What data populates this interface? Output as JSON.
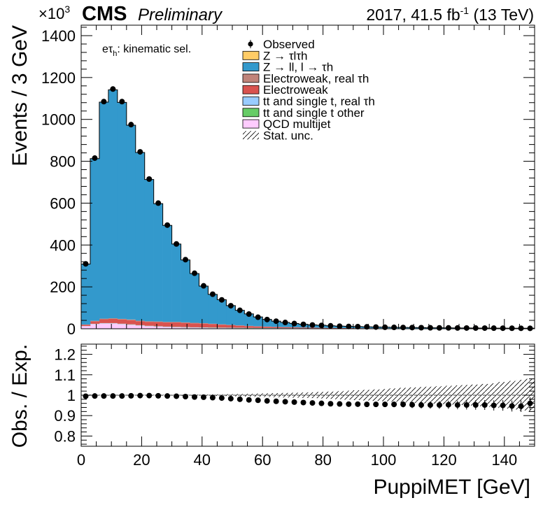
{
  "header": {
    "multiplier": "×10",
    "multiplier_exp": "3",
    "experiment": "CMS",
    "status": "Preliminary",
    "lumi_prefix": "2017, 41.5 fb",
    "lumi_exp": "-1",
    "lumi_suffix": " (13 TeV)"
  },
  "category": {
    "text_e": "eτ",
    "text_sub": "h",
    "text_rest": ": kinematic sel."
  },
  "chart_data": [
    {
      "type": "histogram",
      "stacked": true,
      "ylabel": "Events / 3 GeV",
      "ylim": [
        0,
        1450
      ],
      "yticks": [
        0,
        200,
        400,
        600,
        800,
        1000,
        1200,
        1400
      ],
      "y_unit_factor": 1000,
      "x_bin_edges_start": 0,
      "bin_width": 3,
      "n_bins": 50,
      "xlim": [
        0,
        150
      ],
      "legend": [
        {
          "name": "Observed",
          "style": "marker",
          "color": "#000000"
        },
        {
          "name": "Z → τlτh",
          "style": "fill",
          "color": "#ffcc66"
        },
        {
          "name": "Z → ll, l → τh",
          "style": "fill",
          "color": "#3399cc"
        },
        {
          "name": "Electroweak, real τh",
          "style": "fill",
          "color": "#c0847a"
        },
        {
          "name": "Electroweak",
          "style": "fill",
          "color": "#d9534f"
        },
        {
          "name": "tt and single t, real τh",
          "style": "fill",
          "color": "#99ccff"
        },
        {
          "name": "tt and single t other",
          "style": "fill",
          "color": "#66cc66"
        },
        {
          "name": "QCD multijet",
          "style": "fill",
          "color": "#ffccff"
        },
        {
          "name": "Stat. unc.",
          "style": "hatch",
          "color": "#000000"
        }
      ],
      "observed": [
        310,
        815,
        1085,
        1145,
        1085,
        975,
        845,
        715,
        600,
        495,
        405,
        330,
        265,
        205,
        165,
        138,
        110,
        88,
        70,
        55,
        44,
        36,
        30,
        25,
        21,
        18,
        16,
        14,
        12,
        11,
        10,
        9,
        8,
        7,
        6.5,
        6,
        5.5,
        5,
        4.5,
        4.2,
        4,
        3.7,
        3.4,
        3.2,
        3,
        2.8,
        2.6,
        2.4,
        2.2,
        2
      ],
      "series": [
        {
          "name": "QCD multijet",
          "color": "#ffccff",
          "values": [
            12,
            22,
            25,
            25,
            22,
            19,
            15,
            12,
            10,
            8,
            7,
            6,
            5,
            4.5,
            4,
            3.5,
            3,
            2.7,
            2.4,
            2.1,
            1.8,
            1.6,
            1.4,
            1.2,
            1,
            0.9,
            0.8,
            0.7,
            0.6,
            0.5,
            0.45,
            0.4,
            0.35,
            0.3,
            0.28,
            0.25,
            0.22,
            0.2,
            0.18,
            0.16,
            0.15,
            0.14,
            0.13,
            0.12,
            0.11,
            0.1,
            0.1,
            0.1,
            0.1,
            0.1
          ]
        },
        {
          "name": "tt and single t other",
          "color": "#66cc66",
          "values": [
            0.5,
            0.8,
            1,
            1,
            1,
            1,
            1,
            1,
            1,
            1,
            1,
            1,
            1,
            1,
            1,
            1,
            1,
            1,
            0.9,
            0.9,
            0.9,
            0.8,
            0.8,
            0.8,
            0.7,
            0.7,
            0.7,
            0.6,
            0.6,
            0.6,
            0.5,
            0.5,
            0.5,
            0.5,
            0.4,
            0.4,
            0.4,
            0.4,
            0.3,
            0.3,
            0.3,
            0.3,
            0.3,
            0.3,
            0.2,
            0.2,
            0.2,
            0.2,
            0.2,
            0.2
          ]
        },
        {
          "name": "tt and single t, real τh",
          "color": "#99ccff",
          "values": [
            0.5,
            0.8,
            1,
            1,
            1,
            1,
            1,
            1,
            1,
            1,
            1,
            1,
            1,
            1,
            1,
            1,
            1,
            1,
            0.9,
            0.9,
            0.9,
            0.8,
            0.8,
            0.8,
            0.7,
            0.7,
            0.7,
            0.6,
            0.6,
            0.6,
            0.5,
            0.5,
            0.5,
            0.5,
            0.4,
            0.4,
            0.4,
            0.4,
            0.3,
            0.3,
            0.3,
            0.3,
            0.3,
            0.3,
            0.2,
            0.2,
            0.2,
            0.2,
            0.2,
            0.2
          ]
        },
        {
          "name": "Electroweak",
          "color": "#d9534f",
          "values": [
            6,
            12,
            18,
            20,
            20,
            20,
            19,
            19,
            20,
            20,
            21,
            20,
            19,
            18,
            16,
            14,
            12,
            10,
            8.5,
            7,
            6,
            5,
            4.2,
            3.5,
            3,
            2.5,
            2.2,
            1.9,
            1.6,
            1.4,
            1.2,
            1.1,
            1,
            0.9,
            0.8,
            0.7,
            0.6,
            0.55,
            0.5,
            0.45,
            0.4,
            0.35,
            0.3,
            0.28,
            0.25,
            0.22,
            0.2,
            0.18,
            0.16,
            0.15
          ]
        },
        {
          "name": "Electroweak, real τh",
          "color": "#c0847a",
          "values": [
            1,
            2,
            3,
            3,
            3,
            3,
            2.5,
            2.5,
            2.5,
            2.5,
            2.5,
            2.5,
            2.3,
            2.1,
            1.9,
            1.7,
            1.5,
            1.3,
            1.1,
            1,
            0.9,
            0.8,
            0.7,
            0.6,
            0.5,
            0.45,
            0.4,
            0.35,
            0.3,
            0.3,
            0.25,
            0.25,
            0.2,
            0.2,
            0.2,
            0.15,
            0.15,
            0.15,
            0.1,
            0.1,
            0.1,
            0.1,
            0.1,
            0.1,
            0.1,
            0.1,
            0.1,
            0.1,
            0.1,
            0.1
          ]
        },
        {
          "name": "Z → ll, l → τh",
          "color": "#3399cc",
          "values": [
            289,
            775,
            1034,
            1091,
            1034,
            928,
            803,
            677,
            563,
            461,
            372,
            298,
            235,
            177,
            140,
            117,
            92,
            72,
            57,
            44,
            34,
            27,
            22,
            18,
            15,
            13,
            11.5,
            10,
            8.6,
            7.9,
            7.2,
            6.4,
            5.7,
            4.9,
            4.5,
            4.2,
            3.8,
            3.4,
            3.1,
            2.9,
            2.8,
            2.5,
            2.3,
            2.2,
            2.1,
            2,
            1.8,
            1.7,
            1.6,
            1.4
          ]
        },
        {
          "name": "Z → τlτh",
          "color": "#ffcc66",
          "values": [
            0.2,
            0.3,
            0.3,
            0.3,
            0.3,
            0.3,
            0.3,
            0.3,
            0.3,
            0.3,
            0.3,
            0.3,
            0.3,
            0.3,
            0.3,
            0.3,
            0.3,
            0.3,
            0.3,
            0.3,
            0.2,
            0.2,
            0.2,
            0.2,
            0.2,
            0.2,
            0.2,
            0.2,
            0.2,
            0.2,
            0.2,
            0.2,
            0.2,
            0.2,
            0.2,
            0.2,
            0.2,
            0.2,
            0.2,
            0.2,
            0.2,
            0.2,
            0.2,
            0.2,
            0.2,
            0.2,
            0.2,
            0.2,
            0.2,
            0.2
          ]
        }
      ]
    },
    {
      "type": "ratio",
      "ylabel": "Obs. / Exp.",
      "xlabel": "PuppiMET [GeV]",
      "ylim": [
        0.75,
        1.25
      ],
      "yticks": [
        0.8,
        0.9,
        1,
        1.1,
        1.2
      ],
      "ytick_labels": [
        "0.8",
        "0.9",
        "1",
        "1.1",
        "1.2"
      ],
      "xticks": [
        0,
        20,
        40,
        60,
        80,
        100,
        120,
        140
      ],
      "ratio": [
        0.995,
        0.996,
        0.996,
        0.996,
        0.996,
        0.997,
        0.998,
        0.998,
        0.997,
        0.996,
        0.995,
        0.993,
        0.991,
        0.99,
        0.988,
        0.986,
        0.983,
        0.98,
        0.977,
        0.975,
        0.972,
        0.97,
        0.968,
        0.966,
        0.964,
        0.962,
        0.96,
        0.958,
        0.957,
        0.956,
        0.956,
        0.955,
        0.955,
        0.955,
        0.955,
        0.955,
        0.953,
        0.952,
        0.952,
        0.952,
        0.953,
        0.952,
        0.952,
        0.952,
        0.952,
        0.95,
        0.95,
        0.947,
        0.946,
        0.96
      ],
      "ratio_err": [
        0.003,
        0.002,
        0.002,
        0.002,
        0.002,
        0.002,
        0.002,
        0.002,
        0.002,
        0.002,
        0.002,
        0.003,
        0.003,
        0.003,
        0.003,
        0.004,
        0.004,
        0.005,
        0.005,
        0.006,
        0.006,
        0.007,
        0.007,
        0.008,
        0.008,
        0.009,
        0.009,
        0.01,
        0.01,
        0.011,
        0.011,
        0.012,
        0.012,
        0.013,
        0.014,
        0.015,
        0.016,
        0.017,
        0.018,
        0.019,
        0.02,
        0.021,
        0.022,
        0.023,
        0.024,
        0.025,
        0.026,
        0.027,
        0.028,
        0.03
      ],
      "stat_unc": [
        0.003,
        0.002,
        0.002,
        0.002,
        0.002,
        0.002,
        0.002,
        0.002,
        0.002,
        0.002,
        0.002,
        0.003,
        0.003,
        0.003,
        0.004,
        0.004,
        0.005,
        0.006,
        0.007,
        0.008,
        0.009,
        0.01,
        0.011,
        0.012,
        0.013,
        0.014,
        0.016,
        0.018,
        0.02,
        0.022,
        0.024,
        0.026,
        0.028,
        0.03,
        0.033,
        0.036,
        0.038,
        0.04,
        0.042,
        0.044,
        0.046,
        0.048,
        0.05,
        0.052,
        0.055,
        0.058,
        0.065,
        0.07,
        0.075,
        0.08
      ]
    }
  ]
}
